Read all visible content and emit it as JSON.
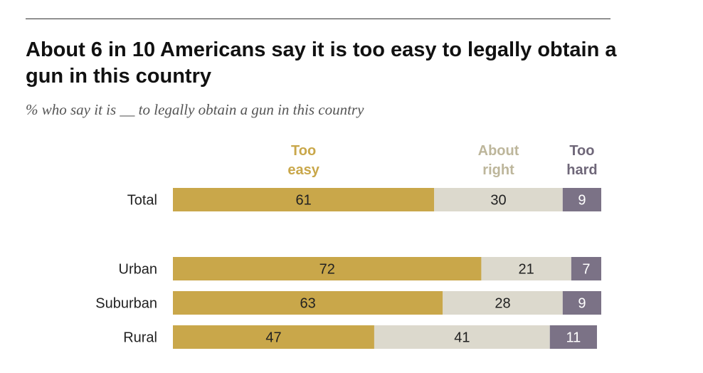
{
  "title": "About 6 in 10 Americans say it is too easy to legally obtain a gun in this country",
  "subtitle": "% who say it is __ to legally obtain a gun in this country",
  "colors": {
    "too_easy": "#C9A74A",
    "about_right": "#DCD9CD",
    "too_hard": "#7B7286",
    "too_easy_label": "#C9A74A",
    "about_right_label": "#BDB69B",
    "too_hard_label": "#6F6779"
  },
  "chart_data": {
    "type": "bar",
    "orientation": "horizontal",
    "stacked": true,
    "title": "About 6 in 10 Americans say it is too easy to legally obtain a gun in this country",
    "subtitle": "% who say it is __ to legally obtain a gun in this country",
    "categories": [
      "Total",
      "Urban",
      "Suburban",
      "Rural"
    ],
    "series": [
      {
        "name": "Too easy",
        "label_lines": [
          "Too",
          "easy"
        ],
        "values": [
          61,
          72,
          63,
          47
        ]
      },
      {
        "name": "About right",
        "label_lines": [
          "About",
          "right"
        ],
        "values": [
          30,
          21,
          28,
          41
        ]
      },
      {
        "name": "Too hard",
        "label_lines": [
          "Too",
          "hard"
        ],
        "values": [
          9,
          7,
          9,
          11
        ]
      }
    ],
    "xlim": [
      0,
      100
    ],
    "legend": "top",
    "grid": false
  }
}
